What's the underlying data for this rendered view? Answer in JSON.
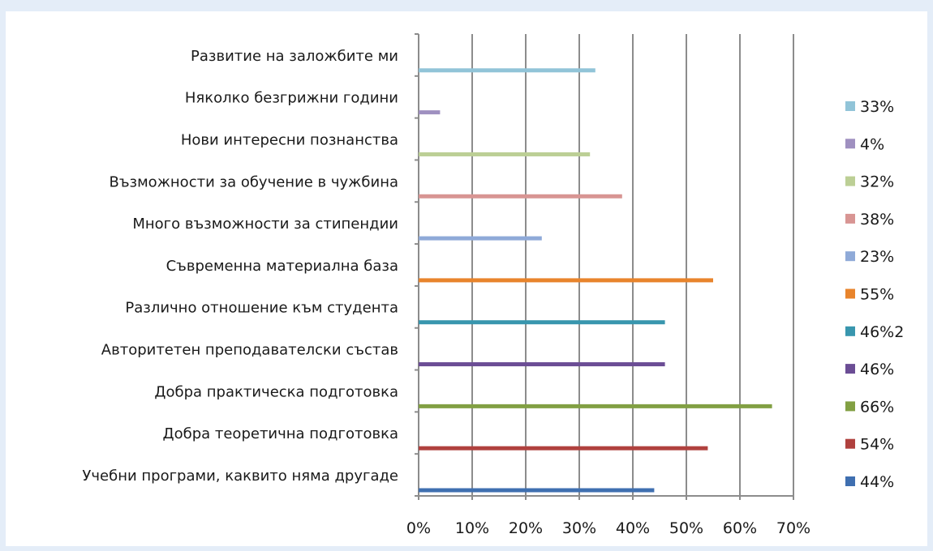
{
  "chart_data": {
    "type": "bar",
    "orientation": "horizontal",
    "categories": [
      "Учебни програми, каквито няма другаде",
      "Добра теоретична подготовка",
      "Добра практическа подготовка",
      "Авторитетен преподавателски състав",
      "Различно отношение към студента",
      "Съвременна материална база",
      "Много възможности за стипендии",
      "Възможности за обучение в чужбина",
      "Нови интересни познанства",
      "Няколко безгрижни години",
      "Развитие на заложбите ми"
    ],
    "values": [
      0.44,
      0.54,
      0.66,
      0.46,
      0.46,
      0.55,
      0.23,
      0.38,
      0.32,
      0.04,
      0.33
    ],
    "colors": [
      "#3f6fb0",
      "#b0413e",
      "#82a043",
      "#6b4d95",
      "#3896ae",
      "#e8842c",
      "#8faad8",
      "#d89593",
      "#bccf95",
      "#9f90c0",
      "#91c4d8"
    ],
    "legend": [
      "44%",
      "54%",
      "66%",
      "46%",
      "46%2",
      "55%",
      "23%",
      "38%",
      "32%",
      "4%",
      "33%"
    ],
    "xlim": [
      0,
      0.7
    ],
    "x_ticks": [
      "0%",
      "10%",
      "20%",
      "30%",
      "40%",
      "50%",
      "60%",
      "70%"
    ],
    "grid": true,
    "legend_position": "right"
  }
}
